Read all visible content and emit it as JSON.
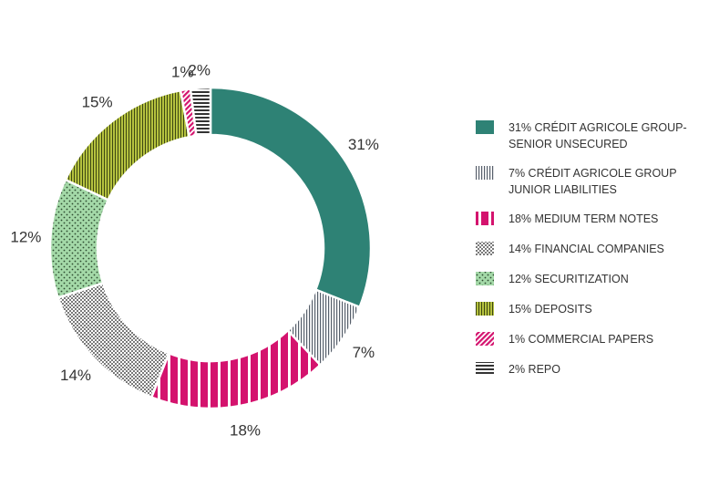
{
  "chart_data": {
    "type": "pie",
    "variant": "donut",
    "title": "",
    "slices": [
      {
        "name": "CRÉDIT AGRICOLE GROUP-SENIOR UNSECURED",
        "value": 31,
        "label": "31%",
        "legend": [
          "31% CRÉDIT AGRICOLE GROUP-",
          "SENIOR UNSECURED"
        ],
        "color": "#2e8275",
        "pattern": "solid"
      },
      {
        "name": "CRÉDIT AGRICOLE GROUP JUNIOR LIABILITIES",
        "value": 7,
        "label": "7%",
        "legend": [
          "7% CRÉDIT AGRICOLE GROUP",
          "JUNIOR LIABILITIES"
        ],
        "color": "#555e6a",
        "pattern": "vlines-fine"
      },
      {
        "name": "MEDIUM TERM NOTES",
        "value": 18,
        "label": "18%",
        "legend": [
          "18% MEDIUM TERM NOTES"
        ],
        "color": "#d4136e",
        "pattern": "vlines-wide"
      },
      {
        "name": "FINANCIAL COMPANIES",
        "value": 14,
        "label": "14%",
        "legend": [
          "14%  FINANCIAL COMPANIES"
        ],
        "color": "#8a8a8a",
        "pattern": "checker"
      },
      {
        "name": "SECURITIZATION",
        "value": 12,
        "label": "12%",
        "legend": [
          "12% SECURITIZATION"
        ],
        "color": "#9fd6a3",
        "pattern": "dots"
      },
      {
        "name": "DEPOSITS",
        "value": 15,
        "label": "15%",
        "legend": [
          "15% DEPOSITS"
        ],
        "color": "#a9b638",
        "pattern": "vlines-dense"
      },
      {
        "name": "COMMERCIAL PAPERS",
        "value": 1,
        "label": "1%",
        "legend": [
          "1% COMMERCIAL PAPERS"
        ],
        "color": "#d4136e",
        "pattern": "diag"
      },
      {
        "name": "REPO",
        "value": 2,
        "label": "2%",
        "legend": [
          "2% REPO"
        ],
        "color": "#333333",
        "pattern": "hlines"
      }
    ]
  }
}
